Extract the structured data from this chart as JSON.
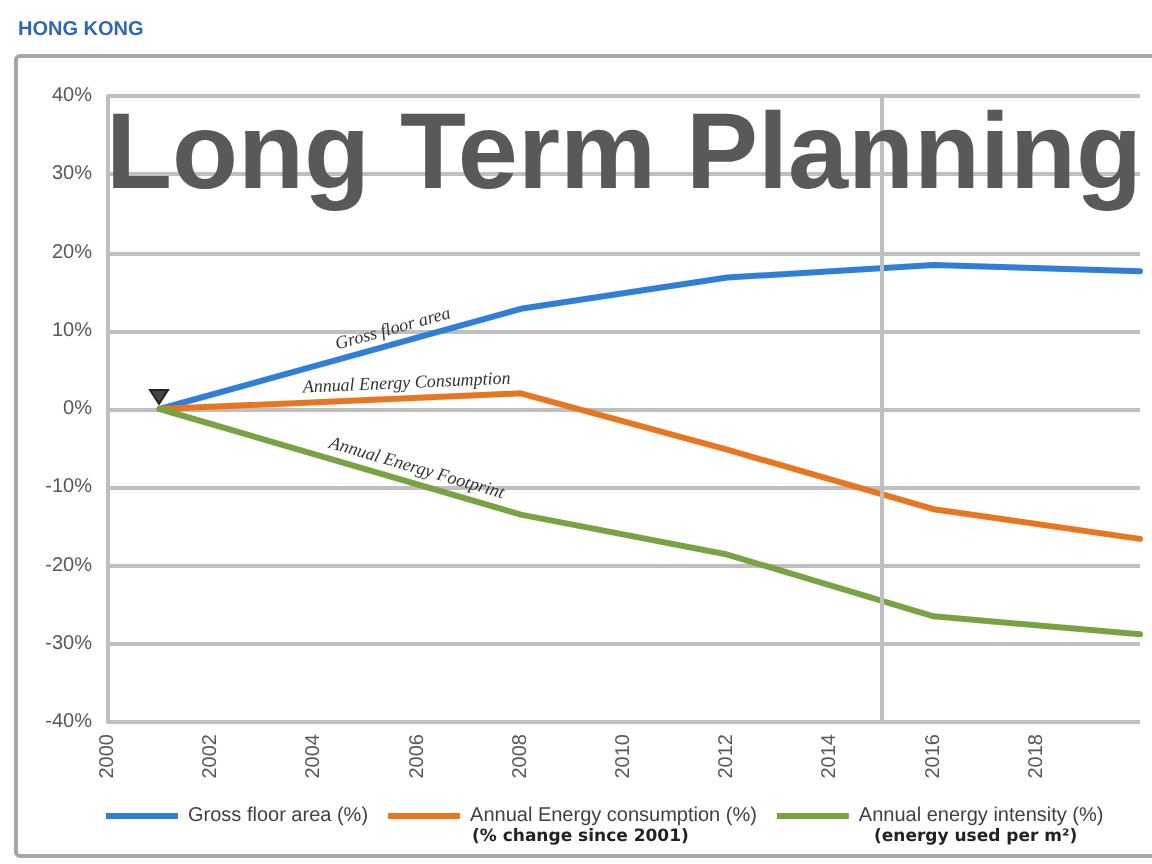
{
  "chart_data": {
    "type": "line",
    "title": "Long Term Planning",
    "subtitle": "HONG KONG",
    "x": [
      2001,
      2008,
      2012,
      2016,
      2020
    ],
    "series": [
      {
        "name": "Gross floor area (%)",
        "color": "#2f7ed8",
        "values": [
          0,
          12.8,
          16.8,
          18.4,
          17.6
        ]
      },
      {
        "name": "Annual Energy consumption (%)",
        "color": "#e8761e",
        "values": [
          0,
          2.0,
          -5.2,
          -12.8,
          -16.6
        ]
      },
      {
        "name": "Annual energy intensity (%)",
        "color": "#77a343",
        "values": [
          0,
          -13.5,
          -18.6,
          -26.5,
          -28.8
        ]
      }
    ],
    "xlim": [
      2000,
      2020
    ],
    "xticks": [
      2000,
      2002,
      2004,
      2006,
      2008,
      2010,
      2012,
      2014,
      2016,
      2018
    ],
    "ylim": [
      -40,
      40
    ],
    "yticks": [
      {
        "value": -40,
        "label": "-40%"
      },
      {
        "value": -30,
        "label": "-30%"
      },
      {
        "value": -20,
        "label": "-20%"
      },
      {
        "value": -10,
        "label": "-10%"
      },
      {
        "value": 0,
        "label": "0%"
      },
      {
        "value": 10,
        "label": "10%"
      },
      {
        "value": 20,
        "label": "20%"
      },
      {
        "value": 30,
        "label": "30%"
      },
      {
        "value": 40,
        "label": "40%"
      }
    ],
    "grid": "y",
    "legend": "bottom",
    "marker": "none",
    "line_style": "solid",
    "ref_lines": [
      {
        "axis": "x",
        "value": 2015,
        "color": "#bfbfbf"
      }
    ],
    "annotations": [
      {
        "text": "Gross floor area",
        "x": 2005.6,
        "y": 8.4
      },
      {
        "text": "Annual Energy Consumption",
        "x": 2005.8,
        "y": 1.4
      },
      {
        "text": "Annual Energy Footprint",
        "x": 2005.9,
        "y": -9.4
      },
      "(% change since 2001)",
      "(energy used per m²)"
    ]
  }
}
